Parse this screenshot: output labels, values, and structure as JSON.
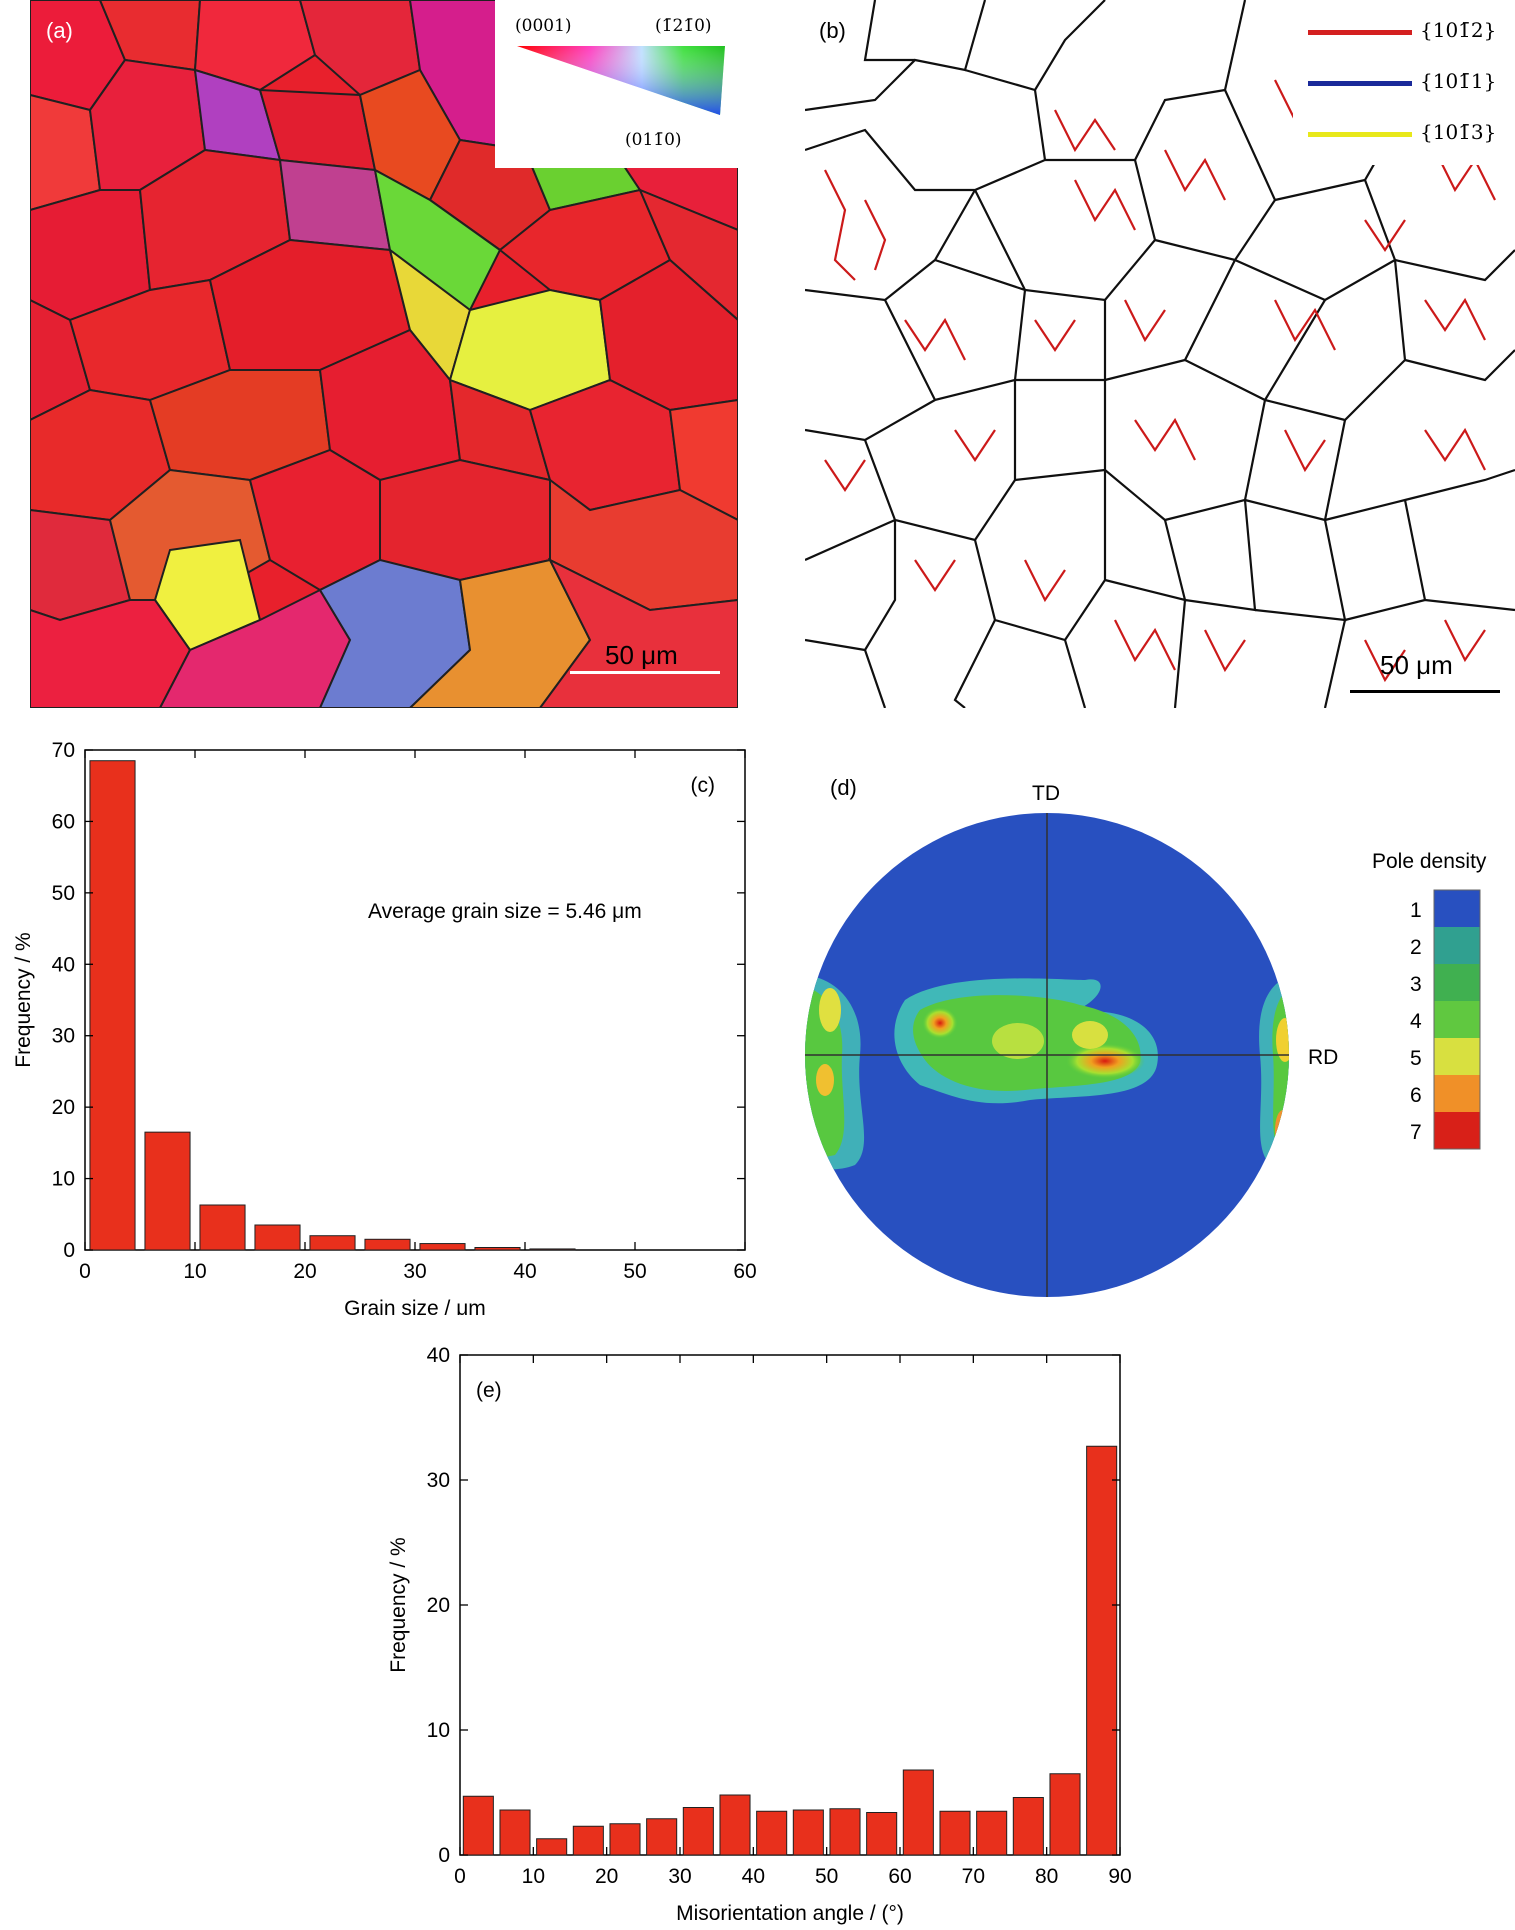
{
  "panel_a": {
    "label": "(a)",
    "scale_bar": "50 μm",
    "ipf_key": {
      "top_left": "(0001)",
      "top_right": "(1̄21̄0)",
      "bottom": "(011̄0)"
    }
  },
  "panel_b": {
    "label": "(b)",
    "scale_bar": "50 μm",
    "legend": [
      {
        "label": "{101̄2}",
        "color": "#d42020"
      },
      {
        "label": "{101̄1}",
        "color": "#1a2a9a"
      },
      {
        "label": "{101̄3}",
        "color": "#e8e81a"
      }
    ]
  },
  "panel_d": {
    "label": "(d)",
    "td": "TD",
    "rd": "RD",
    "legend_title": "Pole density",
    "legend_levels": [
      "1",
      "2",
      "3",
      "4",
      "5",
      "6",
      "7"
    ]
  },
  "chart_data": [
    {
      "type": "bar",
      "panel": "(c)",
      "xlabel": "Grain size / μm",
      "ylabel": "Frequency / %",
      "annotation": "Average grain size = 5.46 μm",
      "xlim": [
        0,
        60
      ],
      "ylim": [
        0,
        70
      ],
      "xticks": [
        0,
        10,
        20,
        30,
        40,
        50,
        60
      ],
      "yticks": [
        0,
        10,
        20,
        30,
        40,
        50,
        60,
        70
      ],
      "bar_width": 5,
      "x": [
        2.5,
        7.5,
        12.5,
        17.5,
        22.5,
        27.5,
        32.5,
        37.5,
        42.5,
        47.5,
        52.5,
        57.5
      ],
      "values": [
        68.5,
        16.5,
        6.3,
        3.5,
        2.0,
        1.5,
        0.9,
        0.35,
        0.15,
        0.0,
        0.0,
        0.0
      ],
      "bar_color": "#e8301c"
    },
    {
      "type": "bar",
      "panel": "(e)",
      "xlabel": "Misorientation angle / (°)",
      "ylabel": "Frequency / %",
      "xlim": [
        0,
        90
      ],
      "ylim": [
        0,
        40
      ],
      "xticks": [
        0,
        10,
        20,
        30,
        40,
        50,
        60,
        70,
        80,
        90
      ],
      "yticks": [
        0,
        10,
        20,
        30,
        40
      ],
      "bar_width": 5,
      "x": [
        2.5,
        7.5,
        12.5,
        17.5,
        22.5,
        27.5,
        32.5,
        37.5,
        42.5,
        47.5,
        52.5,
        57.5,
        62.5,
        67.5,
        72.5,
        77.5,
        82.5,
        87.5
      ],
      "values": [
        4.7,
        3.6,
        1.3,
        2.3,
        2.5,
        2.9,
        3.8,
        4.8,
        3.5,
        3.6,
        3.7,
        3.4,
        6.8,
        3.5,
        3.5,
        4.6,
        6.5,
        32.7
      ],
      "bar_color": "#e8301c"
    }
  ]
}
